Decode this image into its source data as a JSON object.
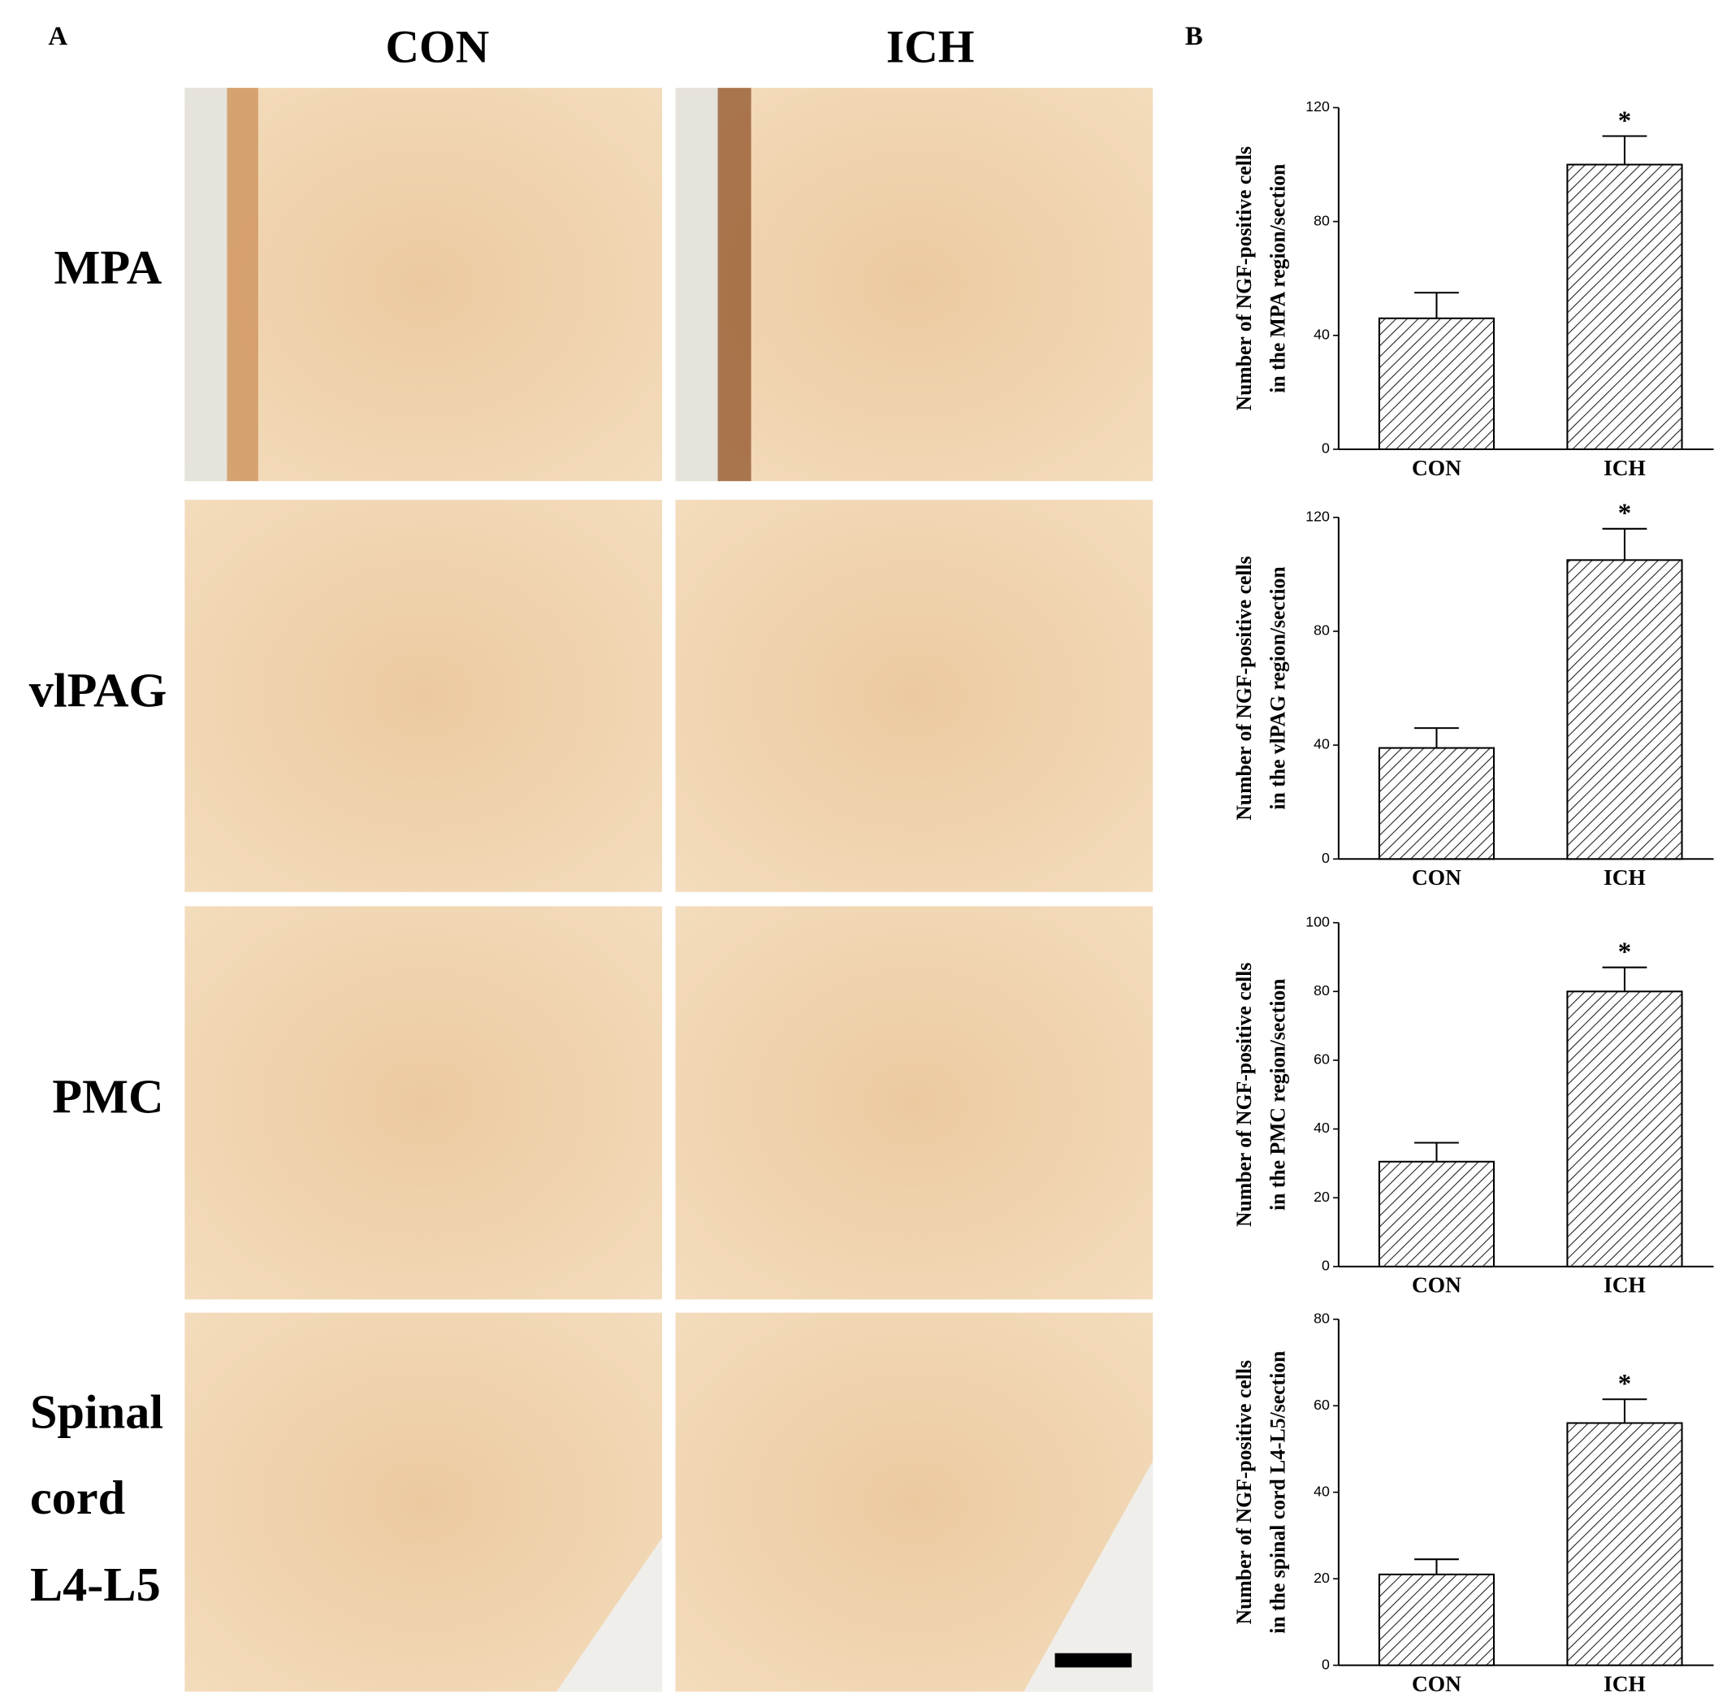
{
  "panel_a": {
    "label": "A",
    "columns": [
      "CON",
      "ICH"
    ],
    "rows": [
      [
        "MPA"
      ],
      [
        "vlPAG"
      ],
      [
        "PMC"
      ],
      [
        "Spinal",
        "cord",
        "L4-L5"
      ]
    ]
  },
  "panel_b": {
    "label": "B"
  },
  "chart_data": [
    {
      "type": "bar",
      "ylabel": [
        "Number of NGF-positive cells",
        "in the MPA region/section"
      ],
      "categories": [
        "CON",
        "ICH"
      ],
      "values": [
        46,
        100
      ],
      "errors": [
        9,
        10
      ],
      "annotations": [
        null,
        "*"
      ],
      "ylim": [
        0,
        120
      ],
      "yticks": [
        0,
        40,
        80,
        120
      ]
    },
    {
      "type": "bar",
      "ylabel": [
        "Number of NGF-positive cells",
        "in the vlPAG region/section"
      ],
      "categories": [
        "CON",
        "ICH"
      ],
      "values": [
        39,
        105
      ],
      "errors": [
        7,
        11
      ],
      "annotations": [
        null,
        "*"
      ],
      "ylim": [
        0,
        120
      ],
      "yticks": [
        0,
        40,
        80,
        120
      ]
    },
    {
      "type": "bar",
      "ylabel": [
        "Number of NGF-positive cells",
        "in the PMC region/section"
      ],
      "categories": [
        "CON",
        "ICH"
      ],
      "values": [
        30.5,
        80
      ],
      "errors": [
        5.5,
        7
      ],
      "annotations": [
        null,
        "*"
      ],
      "ylim": [
        0,
        100
      ],
      "yticks": [
        0,
        20,
        40,
        60,
        80,
        100
      ]
    },
    {
      "type": "bar",
      "ylabel": [
        "Number of NGF-positive cells",
        "in the spinal cord L4-L5/section"
      ],
      "categories": [
        "CON",
        "ICH"
      ],
      "values": [
        21,
        56
      ],
      "errors": [
        3.5,
        5.5
      ],
      "annotations": [
        null,
        "*"
      ],
      "ylim": [
        0,
        80
      ],
      "yticks": [
        0,
        20,
        40,
        60,
        80
      ]
    }
  ]
}
